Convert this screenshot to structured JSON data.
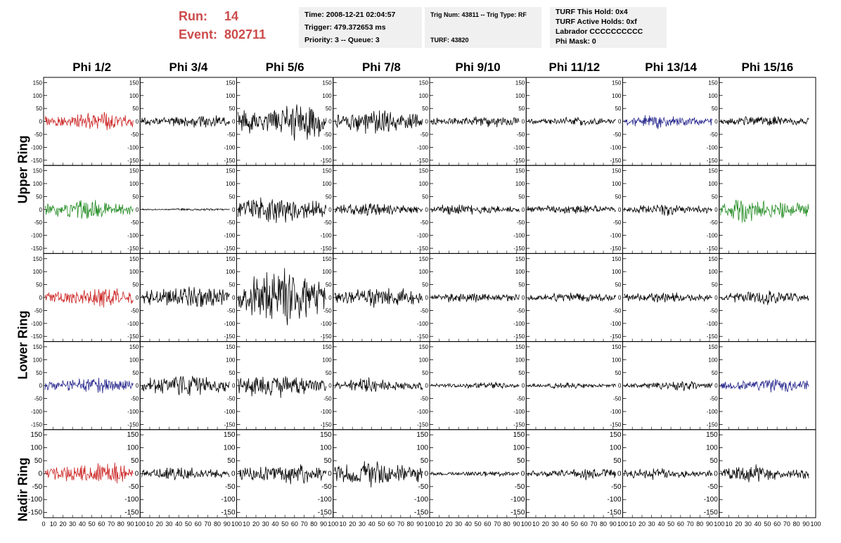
{
  "header": {
    "run_label": "Run:",
    "run_value": "14",
    "event_label": "Event:",
    "event_value": "802711"
  },
  "info1": {
    "time": "Time: 2008-12-21 02:04:57",
    "trigger": "Trigger: 479.372653 ms",
    "priority": "Priority: 3 -- Queue: 3"
  },
  "info2": {
    "trig": "Trig Num: 43811 -- Trig Type: RF",
    "turf": "TURF: 43820"
  },
  "info3": {
    "hold": "TURF This Hold: 0x4",
    "active": "TURF Active Holds: 0xf",
    "labrador": "Labrador CCCCCCCCCC",
    "phimask": "Phi Mask: 0"
  },
  "columns": [
    "Phi 1/2",
    "Phi 3/4",
    "Phi 5/6",
    "Phi 7/8",
    "Phi 9/10",
    "Phi 11/12",
    "Phi 13/14",
    "Phi 15/16"
  ],
  "row_labels": {
    "upper": "Upper Ring",
    "lower": "Lower Ring",
    "nadir": "Nadir Ring"
  },
  "colors": {
    "black": "#000000",
    "red": "#cc2222",
    "green": "#228b22",
    "blue": "#22228b"
  },
  "chart_data": {
    "type": "line",
    "xlim": [
      0,
      100
    ],
    "ylim": [
      -170,
      170
    ],
    "y_ticks": [
      "150",
      "100",
      "50",
      "0",
      "-50",
      "-100",
      "-150"
    ],
    "y_tick_values": [
      150,
      100,
      50,
      0,
      -50,
      -100,
      -150
    ],
    "x_ticks": [
      "0",
      "10",
      "20",
      "30",
      "40",
      "50",
      "60",
      "70",
      "80",
      "90",
      "100"
    ],
    "panels": [
      [
        {
          "color": "red",
          "amp": 35
        },
        {
          "color": "black",
          "amp": 25
        },
        {
          "color": "black",
          "amp": 70
        },
        {
          "color": "black",
          "amp": 45
        },
        {
          "color": "black",
          "amp": 20
        },
        {
          "color": "black",
          "amp": 15
        },
        {
          "color": "blue",
          "amp": 25
        },
        {
          "color": "black",
          "amp": 20
        }
      ],
      [
        {
          "color": "green",
          "amp": 35
        },
        {
          "color": "black",
          "amp": 4
        },
        {
          "color": "black",
          "amp": 50
        },
        {
          "color": "black",
          "amp": 25
        },
        {
          "color": "black",
          "amp": 20
        },
        {
          "color": "black",
          "amp": 18
        },
        {
          "color": "black",
          "amp": 20
        },
        {
          "color": "green",
          "amp": 45
        }
      ],
      [
        {
          "color": "red",
          "amp": 35
        },
        {
          "color": "black",
          "amp": 45
        },
        {
          "color": "black",
          "amp": 100
        },
        {
          "color": "black",
          "amp": 40
        },
        {
          "color": "black",
          "amp": 20
        },
        {
          "color": "black",
          "amp": 20
        },
        {
          "color": "black",
          "amp": 20
        },
        {
          "color": "black",
          "amp": 25
        }
      ],
      [
        {
          "color": "blue",
          "amp": 30
        },
        {
          "color": "black",
          "amp": 40
        },
        {
          "color": "black",
          "amp": 45
        },
        {
          "color": "black",
          "amp": 25
        },
        {
          "color": "black",
          "amp": 12
        },
        {
          "color": "black",
          "amp": 10
        },
        {
          "color": "black",
          "amp": 20
        },
        {
          "color": "blue",
          "amp": 30
        }
      ],
      [
        {
          "color": "red",
          "amp": 40
        },
        {
          "color": "black",
          "amp": 25
        },
        {
          "color": "black",
          "amp": 40
        },
        {
          "color": "black",
          "amp": 50
        },
        {
          "color": "black",
          "amp": 10
        },
        {
          "color": "black",
          "amp": 20
        },
        {
          "color": "black",
          "amp": 20
        },
        {
          "color": "black",
          "amp": 30
        }
      ]
    ]
  }
}
